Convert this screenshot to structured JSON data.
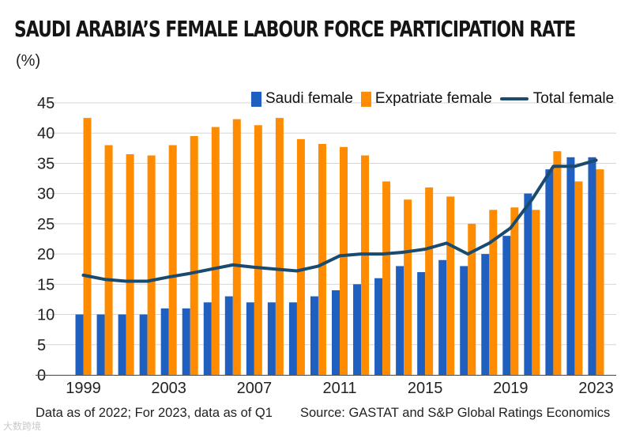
{
  "title": "SAUDI ARABIA’S FEMALE LABOUR FORCE PARTICIPATION RATE",
  "unit": "(%)",
  "footer_left": "Data as of 2022; For 2023, data as of Q1",
  "footer_right": "Source: GASTAT and S&P Global Ratings Economics",
  "watermark": "大数跨境",
  "colors": {
    "saudi": "#1f5fbf",
    "expatriate": "#ff8c00",
    "total": "#1a4a6e",
    "grid": "#d6d6d6"
  },
  "chart_data": {
    "type": "bar",
    "ylim": [
      0,
      45
    ],
    "yticks": [
      0,
      5,
      10,
      15,
      20,
      25,
      30,
      35,
      40,
      45
    ],
    "grid": true,
    "legend_position": "top-right",
    "categories": [
      1999,
      2000,
      2001,
      2002,
      2003,
      2004,
      2005,
      2006,
      2007,
      2008,
      2009,
      2010,
      2011,
      2012,
      2013,
      2014,
      2015,
      2016,
      2017,
      2018,
      2019,
      2020,
      2021,
      2022,
      2023
    ],
    "xtick_labels": [
      "1999",
      "2003",
      "2007",
      "2011",
      "2015",
      "2019",
      "2023"
    ],
    "series": [
      {
        "name": "Saudi female",
        "kind": "bar",
        "values": [
          10,
          10,
          10,
          10,
          11,
          11,
          12,
          13,
          12,
          12,
          12,
          13,
          14,
          15,
          16,
          18,
          17,
          19,
          18,
          20,
          23,
          30,
          34,
          36,
          36
        ]
      },
      {
        "name": "Expatriate female",
        "kind": "bar",
        "values": [
          42.5,
          38,
          36.5,
          36.3,
          38,
          39.5,
          41,
          42.3,
          41.3,
          42.5,
          39,
          38.2,
          37.7,
          36.3,
          32,
          29,
          31,
          29.5,
          25,
          27.3,
          27.7,
          27.3,
          37,
          32,
          34
        ]
      },
      {
        "name": "Total female",
        "kind": "line",
        "values": [
          16.5,
          15.8,
          15.5,
          15.5,
          16.2,
          16.8,
          17.5,
          18.2,
          17.8,
          17.5,
          17.2,
          18,
          19.7,
          20,
          20,
          20.3,
          20.8,
          21.8,
          20,
          21.8,
          24.3,
          29,
          34.5,
          34.5,
          35.5
        ]
      }
    ]
  }
}
